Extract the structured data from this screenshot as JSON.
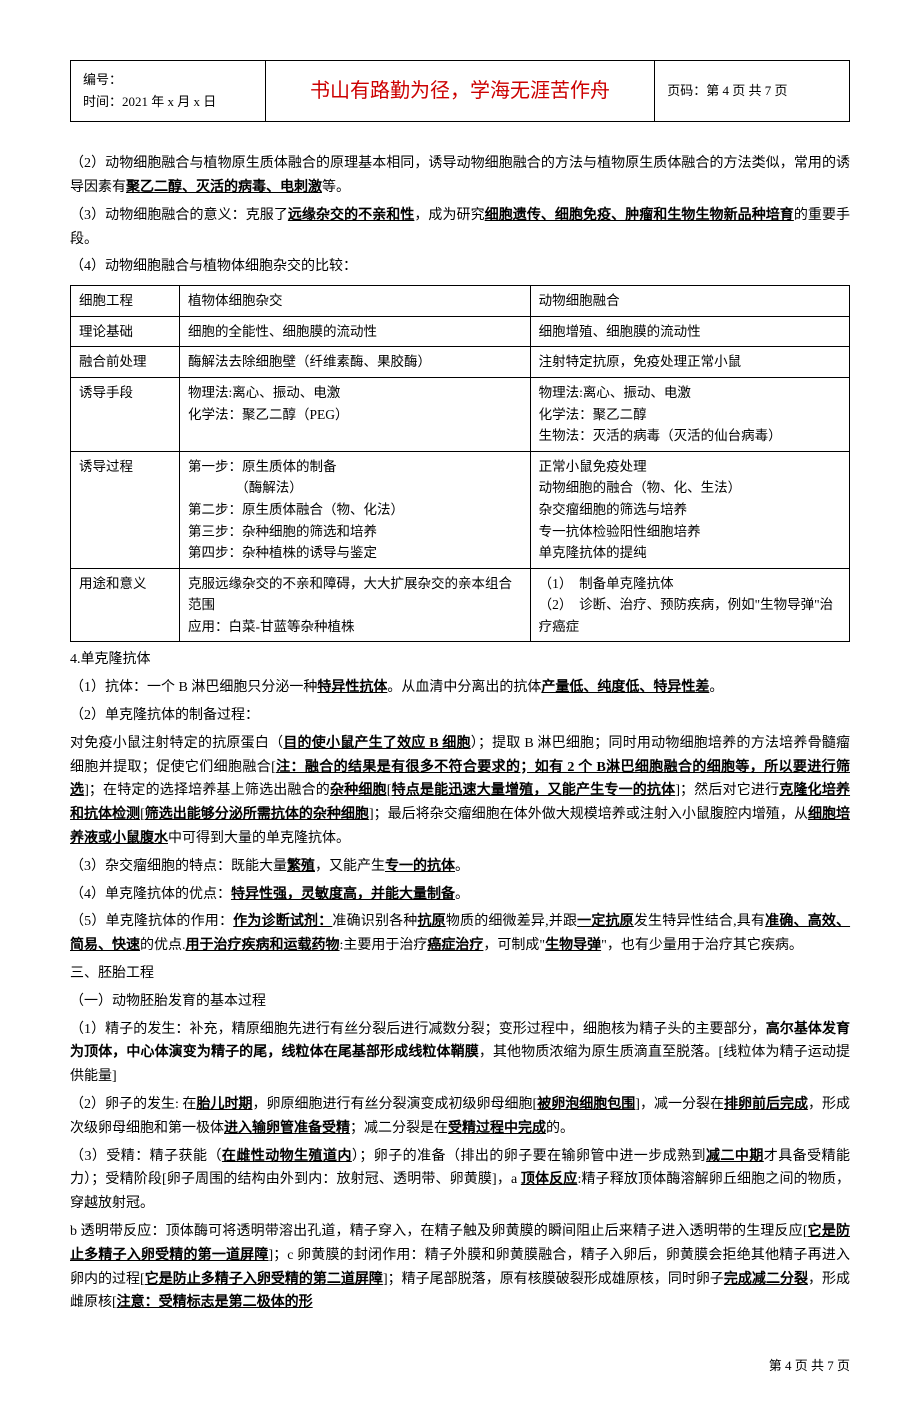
{
  "header": {
    "left_line1": "编号：",
    "left_line2": "时间：2021 年 x 月 x 日",
    "center": "书山有路勤为径，学海无涯苦作舟",
    "right": "页码：第 4 页  共 7 页"
  },
  "p2_intro": "（2）动物细胞融合与植物原生质体融合的原理基本相同，诱导动物细胞融合的方法与植物原生质体融合的方法类似，常用的诱导因素有",
  "p2_factors": "聚乙二醇、灭活的病毒、电刺激",
  "p2_end": "等。",
  "p3_intro": "（3）动物细胞融合的意义：克服了",
  "p3_a": "远缘杂交的不亲和性",
  "p3_mid": "，成为研究",
  "p3_b": "细胞遗传、细胞免疫、肿瘤和生物生物新品种培育",
  "p3_end": "的重要手段。",
  "p4": "（4）动物细胞融合与植物体细胞杂交的比较：",
  "table": {
    "r1c1": "细胞工程",
    "r1c2": "植物体细胞杂交",
    "r1c3": "动物细胞融合",
    "r2c1": "理论基础",
    "r2c2": "细胞的全能性、细胞膜的流动性",
    "r2c3": "细胞增殖、细胞膜的流动性",
    "r3c1": "融合前处理",
    "r3c2": "酶解法去除细胞壁（纤维素酶、果胶酶）",
    "r3c3": "注射特定抗原，免疫处理正常小鼠",
    "r4c1": "诱导手段",
    "r4c2": "物理法:离心、振动、电激\n化学法：聚乙二醇（PEG）",
    "r4c3": "物理法:离心、振动、电激\n化学法：聚乙二醇\n生物法：灭活的病毒（灭活的仙台病毒）",
    "r5c1": "诱导过程",
    "r5c2": "第一步：原生质体的制备\n　　　　（酶解法）\n第二步：原生质体融合（物、化法）\n第三步：杂种细胞的筛选和培养\n第四步：杂种植株的诱导与鉴定",
    "r5c3": "正常小鼠免疫处理\n动物细胞的融合（物、化、生法）\n杂交瘤细胞的筛选与培养\n专一抗体检验阳性细胞培养\n单克隆抗体的提纯",
    "r6c1": "用途和意义",
    "r6c2": "克服远缘杂交的不亲和障碍，大大扩展杂交的亲本组合范围\n应用：白菜-甘蓝等杂种植株",
    "r6c3": "（1）　制备单克隆抗体\n（2）　诊断、治疗、预防疾病，例如\"生物导弹\"治疗癌症"
  },
  "s4": "4.单克隆抗体",
  "s4_1a": "（1）抗体：一个 B 淋巴细胞只分泌一种",
  "s4_1b": "特异性抗体",
  "s4_1c": "。从血清中分离出的抗体",
  "s4_1d": "产量低、纯度低、特异性差",
  "s4_1e": "。",
  "s4_2": "（2）单克隆抗体的制备过程：",
  "para_a1": "对免疫小鼠注射特定的抗原蛋白（",
  "para_a2": "目的使小鼠产生了效应 B 细胞",
  "para_a3": "）；提取 B 淋巴细胞；同时用动物细胞培养的方法培养骨髓瘤细胞并提取；促使它们细胞融合[",
  "para_a4": "注：融合的结果是有很多不符合要求的；如有 2 个 B淋巴细胞融合的细胞等，所以要进行筛选",
  "para_a5": "]；在特定的选择培养基上筛选出融合的",
  "para_a6": "杂种细胞",
  "para_a7": "[",
  "para_a8": "特点是能迅速大量增殖，又能产生专一的抗体",
  "para_a9": "]；然后对它进行",
  "para_a10": "克隆化培养和抗体检测",
  "para_a11": "[",
  "para_a12": "筛选出能够分泌所需抗体的杂种细胞",
  "para_a13": "]；最后将杂交瘤细胞在体外做大规模培养或注射入小鼠腹腔内增殖，从",
  "para_a14": "细胞培养液或小鼠腹水",
  "para_a15": "中可得到大量的单克隆抗体。",
  "s4_3a": "（3）杂交瘤细胞的特点：既能大量",
  "s4_3b": "繁殖",
  "s4_3c": "，又能产生",
  "s4_3d": "专一的抗体",
  "s4_3e": "。",
  "s4_4a": "（4）单克隆抗体的优点：",
  "s4_4b": "特异性强，灵敏度高，并能大量制备",
  "s4_4c": "。",
  "s4_5a": "（5）单克隆抗体的作用：",
  "s4_5b": "作为诊断试剂：",
  "s4_5c": "准确识别各种",
  "s4_5d": "抗原",
  "s4_5e": "物质的细微差异,并跟",
  "s4_5f": "一定抗原",
  "s4_5g": "发生特异性结合,具有",
  "s4_5h": "准确、高效、简易、快速",
  "s4_5i": "的优点.",
  "s4_5j": "用于治疗疾病和运载药物",
  "s4_5k": ":主要用于治疗",
  "s4_5l": "癌症治疗",
  "s4_5m": "，可制成\"",
  "s4_5n": "生物导弹",
  "s4_5o": "\"，也有少量用于治疗其它疾病。",
  "sec3": "三、胚胎工程",
  "sec3_1": "（一）动物胚胎发育的基本过程",
  "sp1a": "（1）精子的发生：补充，精原细胞先进行有丝分裂后进行减数分裂；变形过程中，细胞核为精子头的主要部分，",
  "sp1b": "高尔基体发育为顶体，中心体演变为精子的尾，线粒体在尾基部形成线粒体鞘膜",
  "sp1c": "，其他物质浓缩为原生质滴直至脱落。[线粒体为精子运动提供能量]",
  "sp2a": "（2）卵子的发生: 在",
  "sp2b": "胎儿时期",
  "sp2c": "，卵原细胞进行有丝分裂演变成初级卵母细胞[",
  "sp2d": "被卵泡细胞包围",
  "sp2e": "]，减一分裂在",
  "sp2f": "排卵前后完成",
  "sp2g": "，形成次级卵母细胞和第一极体",
  "sp2h": "进入输卵管准备受精",
  "sp2i": "；减二分裂是在",
  "sp2j": "受精过程中完成",
  "sp2k": "的。",
  "sp3a": "（3）受精：精子获能（",
  "sp3b": "在雌性动物生殖道内",
  "sp3c": "）；卵子的准备（排出的卵子要在输卵管中进一步成熟到",
  "sp3d": "减二中期",
  "sp3e": "才具备受精能力）；受精阶段[卵子周围的结构由外到内：放射冠、透明带、卵黄膜]，a ",
  "sp3f": "顶体反应",
  "sp3g": ":精子释放顶体酶溶解卵丘细胞之间的物质，穿越放射冠。",
  "sp4a": "b 透明带反应：顶体酶可将透明带溶出孔道，精子穿入，在精子触及卵黄膜的瞬间阻止后来精子进入透明带的生理反应[",
  "sp4b": "它是防止多精子入卵受精的第一道屏障",
  "sp4c": "]；c 卵黄膜的封闭作用：精子外膜和卵黄膜融合，精子入卵后，卵黄膜会拒绝其他精子再进入卵内的过程[",
  "sp4d": "它是防止多精子入卵受精的第二道屏障",
  "sp4e": "]；精子尾部脱落，原有核膜破裂形成雄原核，同时卵子",
  "sp4f": "完成减二分裂",
  "sp4g": "，形成雌原核[",
  "sp4h": "注意：受精标志是第二极体的形",
  "footer": "第  4  页  共  7  页"
}
